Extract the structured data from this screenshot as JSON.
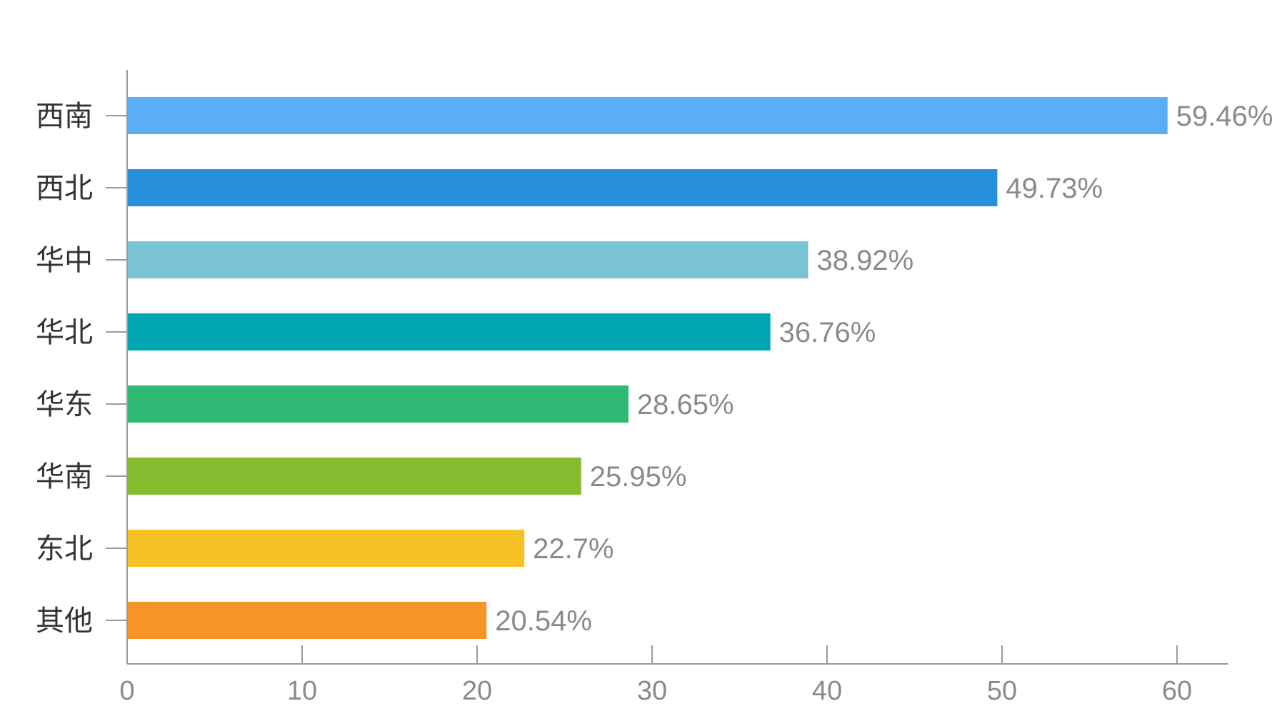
{
  "chart_data": {
    "type": "bar",
    "orientation": "horizontal",
    "categories": [
      "西南",
      "西北",
      "华中",
      "华北",
      "华东",
      "华南",
      "东北",
      "其他"
    ],
    "values": [
      59.46,
      49.73,
      38.92,
      36.76,
      28.65,
      25.95,
      22.7,
      20.54
    ],
    "value_labels": [
      "59.46%",
      "49.73%",
      "38.92%",
      "36.76%",
      "28.65%",
      "25.95%",
      "22.7%",
      "20.54%"
    ],
    "colors": [
      "#5aaef5",
      "#2790dd",
      "#79c3d3",
      "#00a5b2",
      "#2db874",
      "#86bb2f",
      "#f6c124",
      "#f59427"
    ],
    "xticks": [
      "0",
      "10",
      "20",
      "30",
      "40",
      "50",
      "60"
    ],
    "xlim": [
      0,
      63
    ],
    "title": "",
    "xlabel": "",
    "ylabel": "",
    "grid": false,
    "legend": "none"
  }
}
